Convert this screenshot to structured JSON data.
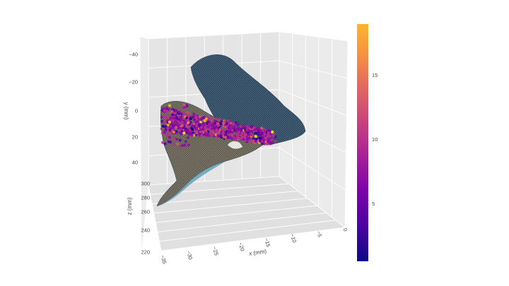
{
  "chart_data": {
    "type": "scatter3d",
    "title": "",
    "axes": {
      "x": {
        "label": "x (mm)",
        "range": [
          -35,
          0
        ],
        "ticks": [
          -35,
          -30,
          -25,
          -20,
          -15,
          -10,
          -5,
          0
        ],
        "tick_labels": [
          "−35",
          "−30",
          "−25",
          "−20",
          "−15",
          "−10",
          "−5",
          "0"
        ]
      },
      "y": {
        "label": "y (mm)",
        "range": [
          -40,
          40
        ],
        "ticks": [
          -40,
          -20,
          0,
          20,
          40
        ],
        "tick_labels": [
          "−40",
          "−20",
          "0",
          "20",
          "40"
        ]
      },
      "z": {
        "label": "z (mm)",
        "range": [
          220,
          300
        ],
        "ticks": [
          220,
          240,
          260,
          280,
          300
        ],
        "tick_labels": [
          "220",
          "240",
          "260",
          "280",
          "300"
        ]
      }
    },
    "grid": true,
    "surfaces": [
      {
        "name": "",
        "color": "#34495e",
        "edge_color": "#5a9bb5"
      },
      {
        "name": "",
        "color": "#2c3e50",
        "edge_color": "#6aa7bf"
      }
    ],
    "points": {
      "count_approx": 1500,
      "color_range": [
        1,
        19
      ],
      "colorscale": "plasma"
    },
    "colorbar": {
      "range": [
        0.5,
        19
      ],
      "ticks": [
        5,
        10,
        15
      ],
      "tick_labels": [
        "5",
        "10",
        "15"
      ],
      "colors": [
        "#0d0887",
        "#5302a3",
        "#8b0aa5",
        "#b83289",
        "#db5c68",
        "#f48849",
        "#febc2a",
        "#f0f921"
      ],
      "placement": "right"
    }
  }
}
